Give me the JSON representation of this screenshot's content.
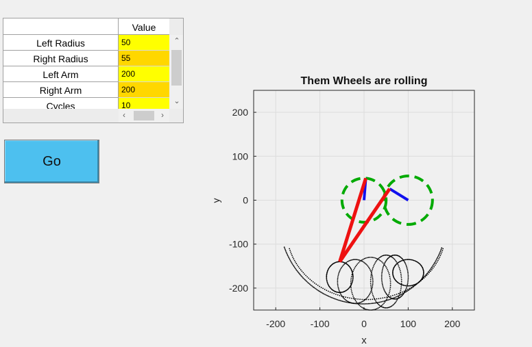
{
  "table": {
    "column_header": "Value",
    "rows": [
      {
        "name": "Left Radius",
        "value": "50"
      },
      {
        "name": "Right Radius",
        "value": "55"
      },
      {
        "name": "Left Arm",
        "value": "200"
      },
      {
        "name": "Right Arm",
        "value": "200"
      },
      {
        "name": "Cycles",
        "value": "10"
      }
    ]
  },
  "go_button": {
    "label": "Go"
  },
  "chart_data": {
    "type": "scatter",
    "title": "Them Wheels are rolling",
    "xlabel": "x",
    "ylabel": "y",
    "xlim": [
      -250,
      250
    ],
    "ylim": [
      -250,
      250
    ],
    "xticks": [
      "-200",
      "-100",
      "0",
      "100",
      "200"
    ],
    "yticks": [
      "200",
      "100",
      "0",
      "-100",
      "-200"
    ],
    "grid": true,
    "left_wheel": {
      "center": [
        0,
        0
      ],
      "radius": 50,
      "color": "#00aa00"
    },
    "right_wheel": {
      "center": [
        100,
        0
      ],
      "radius": 55,
      "color": "#00aa00"
    },
    "blue_spokes": [
      {
        "from": [
          0,
          0
        ],
        "to": [
          4,
          50
        ]
      },
      {
        "from": [
          100,
          0
        ],
        "to": [
          58,
          26
        ]
      }
    ],
    "red_arms": [
      {
        "from": [
          4,
          50
        ],
        "to": [
          -55,
          -140
        ]
      },
      {
        "from": [
          58,
          26
        ],
        "to": [
          -55,
          -140
        ]
      }
    ],
    "arm_color": "#ee1111",
    "spoke_color": "#1111ee",
    "trace_color": "#000000"
  }
}
